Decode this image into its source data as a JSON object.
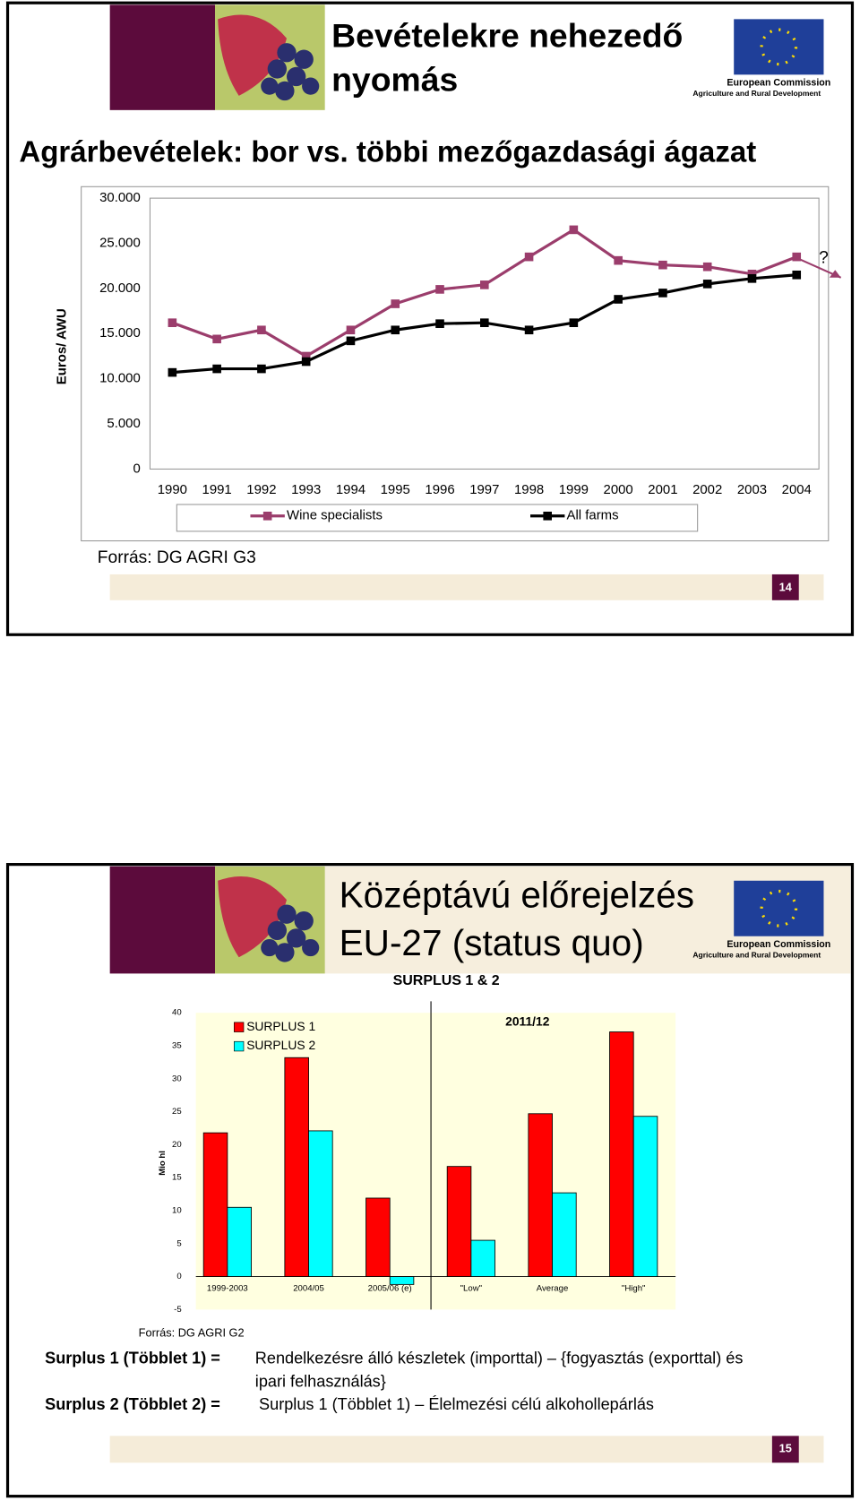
{
  "slides": [
    {
      "title": [
        "Bevételekre nehezedő",
        "nyomás"
      ],
      "subtitle": "Agrárbevételek: bor vs. többi mezőgazdasági ágazat",
      "logo": [
        "European Commission",
        "Agriculture and Rural Development"
      ],
      "source": "Forrás: DG AGRI G3",
      "page": "14"
    },
    {
      "title": [
        "Középtávú előrejelzés",
        "EU-27 (status quo)"
      ],
      "logo": [
        "European Commission",
        "Agriculture and Rural Development"
      ],
      "source": "Forrás: DG AGRI G2",
      "page": "15",
      "definitions": [
        {
          "term": "Surplus 1 (Többlet 1) =",
          "text": [
            "Rendelkezésre álló készletek (importtal) – {fogyasztás (exporttal) és",
            "ipari felhasználás}"
          ]
        },
        {
          "term": "Surplus 2 (Többlet 2) =",
          "text": [
            "Surplus 1 (Többlet 1) – Élelmezési célú alkohollepárlás"
          ]
        }
      ]
    }
  ],
  "chart_data": [
    {
      "type": "line",
      "y_label": "Euros/ AWU",
      "annotation": "?",
      "categories": [
        "1990",
        "1991",
        "1992",
        "1993",
        "1994",
        "1995",
        "1996",
        "1997",
        "1998",
        "1999",
        "2000",
        "2001",
        "2002",
        "2003",
        "2004"
      ],
      "series": [
        {
          "name": "Wine specialists",
          "color": "#9b3d6c",
          "values": [
            16200,
            14400,
            15400,
            12500,
            15400,
            18300,
            19900,
            20400,
            23500,
            26500,
            23100,
            22600,
            22400,
            21600,
            23500
          ]
        },
        {
          "name": "All farms",
          "color": "#000000",
          "values": [
            10700,
            11100,
            11100,
            11900,
            14200,
            15400,
            16100,
            16200,
            15400,
            16200,
            18800,
            19500,
            20500,
            21100,
            21500
          ]
        }
      ],
      "ylim": [
        0,
        30000
      ],
      "yticks": [
        0,
        {
          "value": 5000,
          "label": "5.000"
        },
        {
          "value": 10000,
          "label": "10.000"
        },
        {
          "value": 15000,
          "label": "15.000"
        },
        {
          "value": 20000,
          "label": "20.000"
        },
        {
          "value": 25000,
          "label": "25.000"
        },
        {
          "value": 30000,
          "label": "30.000"
        }
      ],
      "grid": false
    },
    {
      "type": "bar",
      "title": "SURPLUS 1 & 2",
      "y_label": "Mio hl",
      "annotation": "2011/12",
      "categories": [
        "1999-2003",
        "2004/05",
        "2005/06 (e)",
        "\"Low\"",
        "Average",
        "\"High\""
      ],
      "series": [
        {
          "name": "SURPLUS 1",
          "color": "#ff0000",
          "values": [
            21.8,
            33.2,
            11.9,
            16.7,
            24.7,
            37.1
          ]
        },
        {
          "name": "SURPLUS 2",
          "color": "#00ffff",
          "values": [
            10.5,
            22.1,
            -1.2,
            5.5,
            12.7,
            24.3
          ]
        }
      ],
      "ylim": [
        -5,
        40
      ],
      "yticks": [
        -5,
        0,
        5,
        10,
        15,
        20,
        25,
        30,
        35,
        40
      ],
      "grid": false
    }
  ]
}
